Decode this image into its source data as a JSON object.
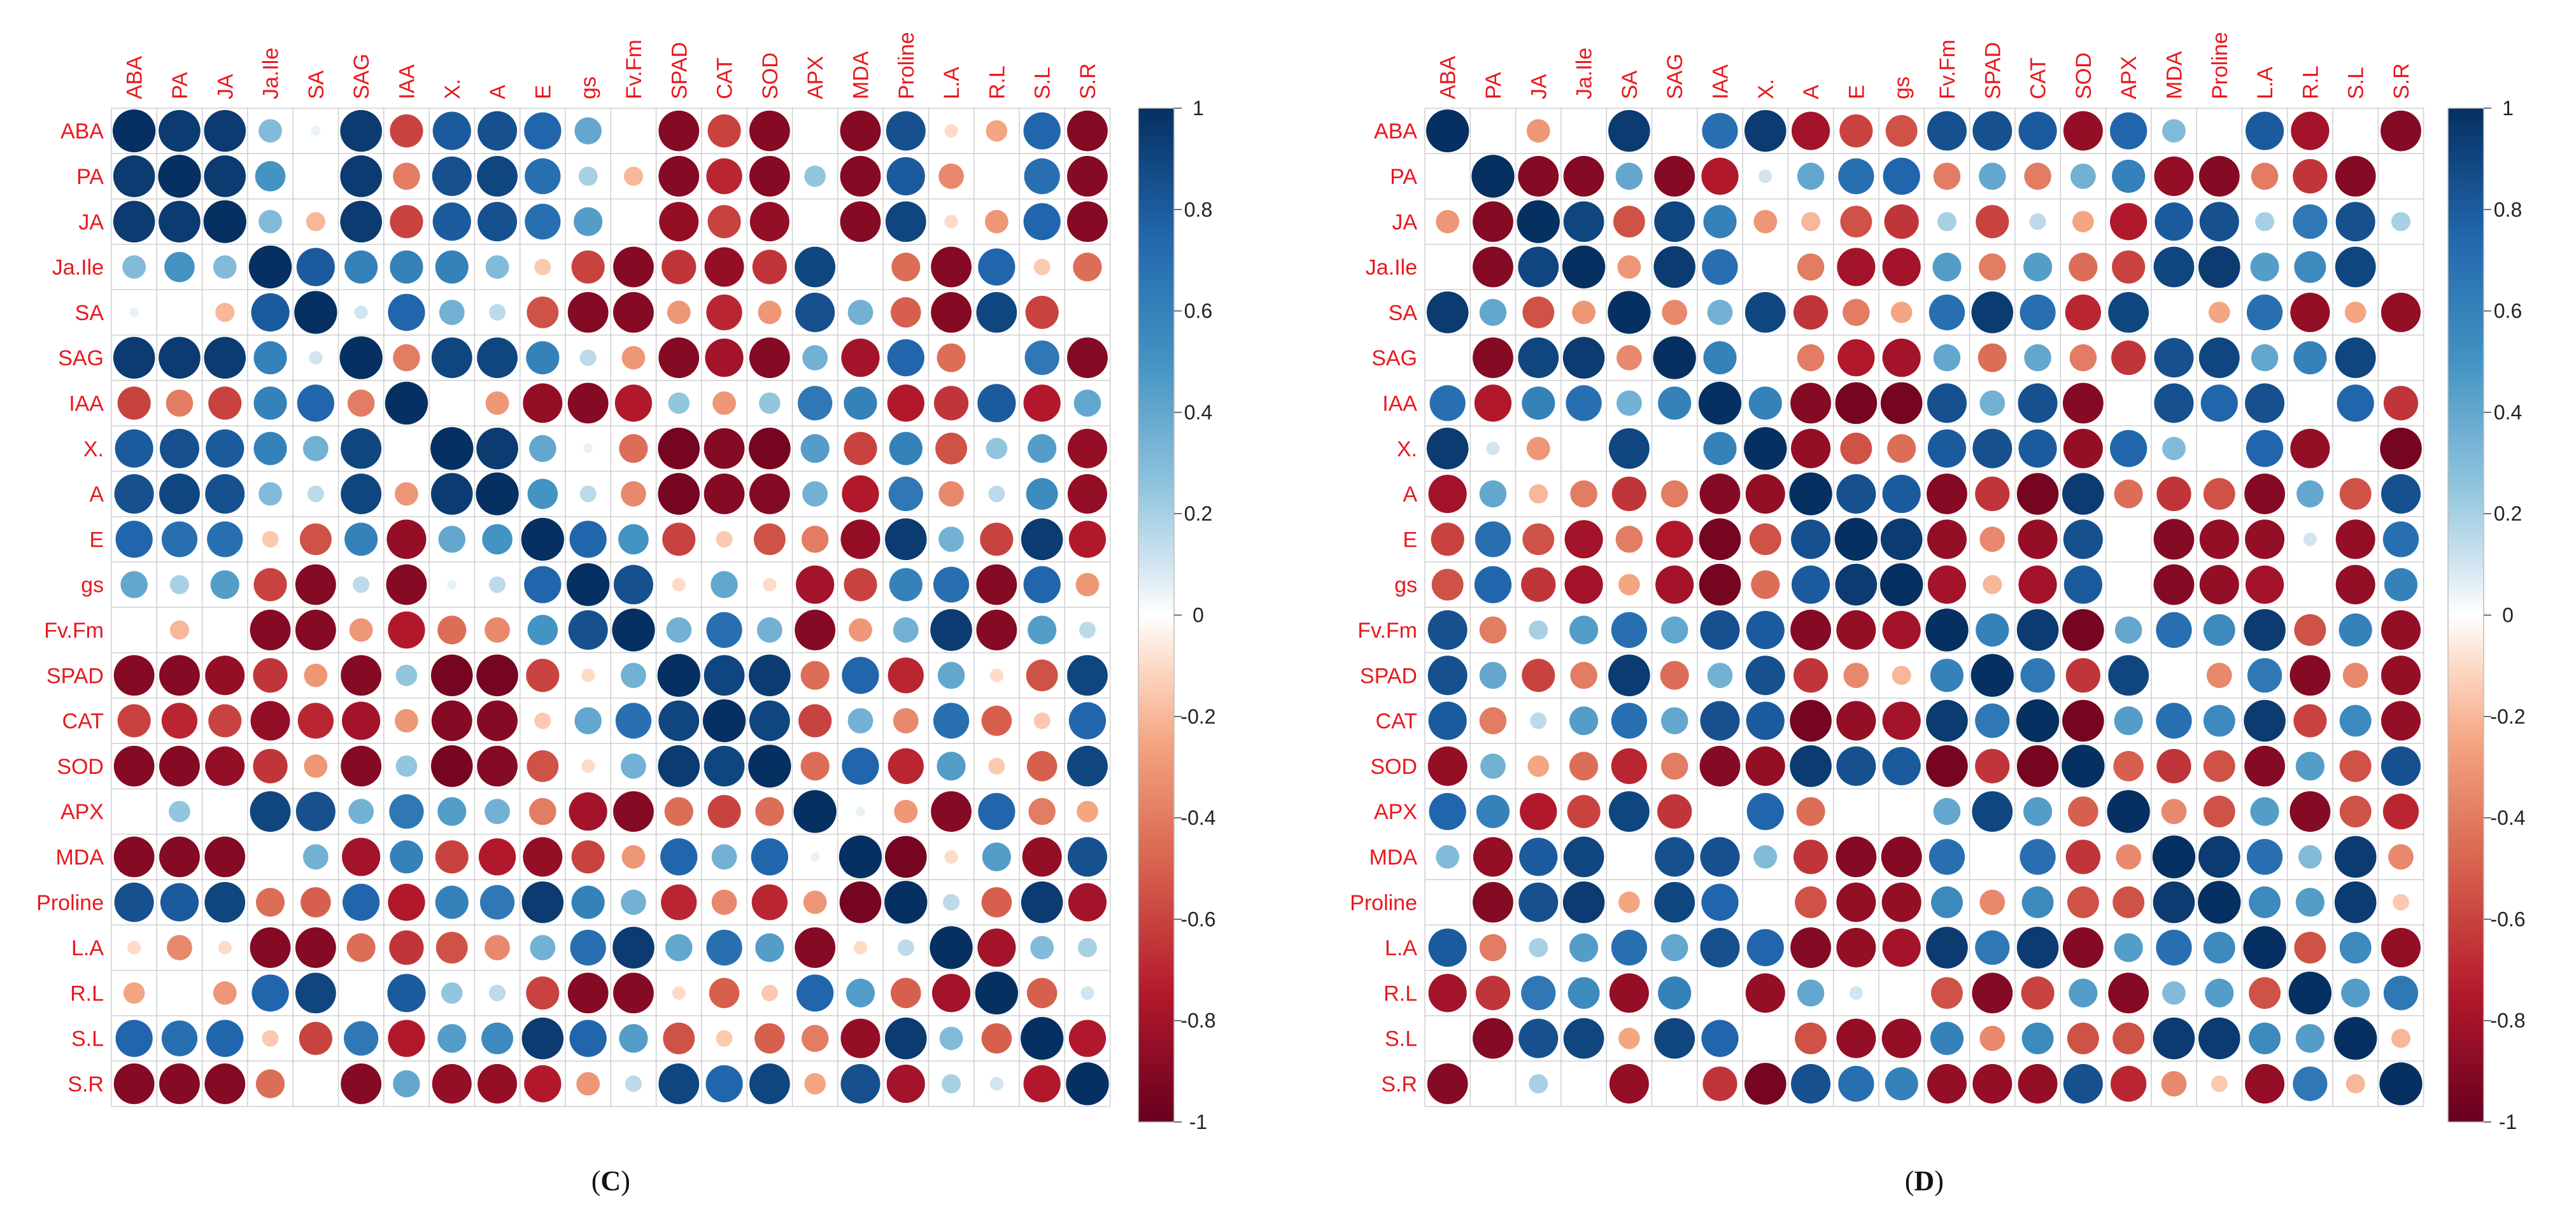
{
  "chart_data": [
    {
      "type": "heatmap",
      "panel_label": "C",
      "variables": [
        "ABA",
        "PA",
        "JA",
        "Ja.Ile",
        "SA",
        "SAG",
        "IAA",
        "X.",
        "A",
        "E",
        "gs",
        "Fv.Fm",
        "SPAD",
        "CAT",
        "SOD",
        "APX",
        "MDA",
        "Proline",
        "L.A",
        "R.L",
        "S.L",
        "S.R"
      ],
      "color_scale": {
        "range": [
          -1,
          1
        ],
        "ticks": [
          "1",
          "0.8",
          "0.6",
          "0.4",
          "0.2",
          "0",
          "-0.2",
          "-0.4",
          "-0.6",
          "-0.8",
          "-1"
        ],
        "colors": {
          "neg": "#67001F",
          "mid": "#FFFFFF",
          "pos": "#053061"
        }
      },
      "legend_position": "right",
      "grid": true,
      "matrix": [
        [
          1,
          0.95,
          0.95,
          0.3,
          0.05,
          0.95,
          -0.6,
          0.8,
          0.85,
          0.75,
          0.4,
          0,
          -0.9,
          -0.6,
          -0.9,
          0,
          -0.9,
          0.85,
          -0.1,
          -0.25,
          0.75,
          -0.9
        ],
        [
          0.95,
          1,
          0.95,
          0.5,
          0,
          0.95,
          -0.4,
          0.85,
          0.9,
          0.7,
          0.2,
          -0.2,
          -0.9,
          -0.7,
          -0.9,
          0.25,
          -0.9,
          0.8,
          -0.35,
          0,
          0.7,
          -0.9
        ],
        [
          0.95,
          0.95,
          1,
          0.3,
          -0.2,
          0.95,
          -0.6,
          0.8,
          0.85,
          0.7,
          0.45,
          0,
          -0.85,
          -0.6,
          -0.85,
          0,
          -0.9,
          0.9,
          -0.1,
          -0.3,
          0.75,
          -0.9
        ],
        [
          0.3,
          0.5,
          0.3,
          1,
          0.8,
          0.6,
          0.6,
          0.6,
          0.3,
          -0.15,
          -0.6,
          -0.9,
          -0.65,
          -0.85,
          -0.65,
          0.9,
          0,
          -0.45,
          -0.9,
          0.75,
          -0.15,
          -0.45
        ],
        [
          0.05,
          0,
          -0.2,
          0.8,
          1,
          0.1,
          0.75,
          0.35,
          0.15,
          -0.55,
          -0.9,
          -0.9,
          -0.3,
          -0.7,
          -0.3,
          0.85,
          0.35,
          -0.5,
          -0.9,
          0.9,
          -0.6,
          0
        ],
        [
          0.95,
          0.95,
          0.95,
          0.6,
          0.1,
          1,
          -0.4,
          0.9,
          0.9,
          0.6,
          0.15,
          -0.3,
          -0.9,
          -0.8,
          -0.9,
          0.35,
          -0.8,
          0.75,
          -0.45,
          0,
          0.65,
          -0.9
        ],
        [
          -0.6,
          -0.4,
          -0.6,
          0.6,
          0.75,
          -0.4,
          1,
          0,
          -0.3,
          -0.85,
          -0.9,
          -0.75,
          0.25,
          -0.3,
          0.25,
          0.65,
          0.6,
          -0.75,
          -0.65,
          0.8,
          -0.75,
          0.4
        ],
        [
          0.8,
          0.85,
          0.8,
          0.6,
          0.35,
          0.9,
          0,
          1,
          0.95,
          0.4,
          0.05,
          -0.45,
          -0.95,
          -0.9,
          -0.95,
          0.45,
          -0.6,
          0.6,
          -0.55,
          0.25,
          0.45,
          -0.85
        ],
        [
          0.85,
          0.9,
          0.85,
          0.3,
          0.15,
          0.9,
          -0.3,
          0.95,
          1,
          0.5,
          0.15,
          -0.35,
          -0.95,
          -0.9,
          -0.9,
          0.35,
          -0.75,
          0.65,
          -0.35,
          0.15,
          0.55,
          -0.85
        ],
        [
          0.75,
          0.7,
          0.7,
          -0.15,
          -0.55,
          0.6,
          -0.85,
          0.4,
          0.5,
          1,
          0.75,
          0.5,
          -0.6,
          -0.15,
          -0.55,
          -0.4,
          -0.85,
          0.95,
          0.35,
          -0.6,
          0.95,
          -0.75
        ],
        [
          0.4,
          0.2,
          0.45,
          -0.6,
          -0.9,
          0.15,
          -0.9,
          0.05,
          0.15,
          0.75,
          1,
          0.85,
          -0.1,
          0.4,
          -0.1,
          -0.8,
          -0.6,
          0.6,
          0.7,
          -0.9,
          0.75,
          -0.3
        ],
        [
          0,
          -0.2,
          0,
          -0.9,
          -0.9,
          -0.3,
          -0.75,
          -0.45,
          -0.35,
          0.5,
          0.85,
          1,
          0.35,
          0.7,
          0.35,
          -0.9,
          -0.3,
          0.35,
          0.95,
          -0.9,
          0.45,
          0.15
        ],
        [
          -0.9,
          -0.9,
          -0.85,
          -0.65,
          -0.3,
          -0.9,
          0.25,
          -0.95,
          -0.95,
          -0.6,
          -0.1,
          0.35,
          1,
          0.9,
          0.95,
          -0.45,
          0.75,
          -0.7,
          0.4,
          -0.1,
          -0.55,
          0.9
        ],
        [
          -0.6,
          -0.7,
          -0.6,
          -0.85,
          -0.7,
          -0.8,
          -0.3,
          -0.9,
          -0.9,
          -0.15,
          0.4,
          0.7,
          0.9,
          1,
          0.9,
          -0.6,
          0.35,
          -0.35,
          0.7,
          -0.5,
          -0.15,
          0.75
        ],
        [
          -0.9,
          -0.9,
          -0.85,
          -0.65,
          -0.3,
          -0.9,
          0.25,
          -0.95,
          -0.9,
          -0.55,
          -0.1,
          0.35,
          0.95,
          0.9,
          1,
          -0.45,
          0.75,
          -0.7,
          0.45,
          -0.15,
          -0.5,
          0.9
        ],
        [
          0,
          0.25,
          0,
          0.9,
          0.85,
          0.35,
          0.65,
          0.45,
          0.35,
          -0.4,
          -0.8,
          -0.9,
          -0.45,
          -0.6,
          -0.45,
          1,
          0.05,
          -0.3,
          -0.9,
          0.75,
          -0.4,
          -0.25
        ],
        [
          -0.9,
          -0.9,
          -0.9,
          0,
          0.35,
          -0.8,
          0.6,
          -0.6,
          -0.75,
          -0.85,
          -0.6,
          -0.3,
          0.75,
          0.35,
          0.75,
          0.05,
          1,
          -0.95,
          -0.1,
          0.45,
          -0.85,
          0.85
        ],
        [
          0.85,
          0.8,
          0.9,
          -0.45,
          -0.5,
          0.75,
          -0.75,
          0.6,
          0.65,
          0.95,
          0.6,
          0.35,
          -0.7,
          -0.35,
          -0.7,
          -0.3,
          -0.95,
          1,
          0.15,
          -0.5,
          0.95,
          -0.8
        ],
        [
          -0.1,
          -0.35,
          -0.1,
          -0.9,
          -0.9,
          -0.45,
          -0.65,
          -0.55,
          -0.35,
          0.35,
          0.7,
          0.95,
          0.4,
          0.7,
          0.45,
          -0.9,
          -0.1,
          0.15,
          1,
          -0.8,
          0.3,
          0.2
        ],
        [
          -0.25,
          0,
          -0.3,
          0.75,
          0.9,
          0,
          0.8,
          0.25,
          0.15,
          -0.6,
          -0.9,
          -0.9,
          -0.1,
          -0.5,
          -0.15,
          0.75,
          0.45,
          -0.5,
          -0.8,
          1,
          -0.5,
          0.1
        ],
        [
          0.75,
          0.7,
          0.75,
          -0.15,
          -0.6,
          0.65,
          -0.75,
          0.45,
          0.55,
          0.95,
          0.75,
          0.45,
          -0.55,
          -0.15,
          -0.5,
          -0.4,
          -0.85,
          0.95,
          0.3,
          -0.5,
          1,
          -0.75
        ],
        [
          -0.9,
          -0.9,
          -0.9,
          -0.45,
          0,
          -0.9,
          0.4,
          -0.85,
          -0.85,
          -0.75,
          -0.3,
          0.15,
          0.9,
          0.75,
          0.9,
          -0.25,
          0.85,
          -0.8,
          0.2,
          0.1,
          -0.75,
          1
        ]
      ]
    },
    {
      "type": "heatmap",
      "panel_label": "D",
      "variables": [
        "ABA",
        "PA",
        "JA",
        "Ja.Ile",
        "SA",
        "SAG",
        "IAA",
        "X.",
        "A",
        "E",
        "gs",
        "Fv.Fm",
        "SPAD",
        "CAT",
        "SOD",
        "APX",
        "MDA",
        "Proline",
        "L.A",
        "R.L",
        "S.L",
        "S.R"
      ],
      "color_scale": {
        "range": [
          -1,
          1
        ],
        "ticks": [
          "1",
          "0.8",
          "0.6",
          "0.4",
          "0.2",
          "0",
          "-0.2",
          "-0.4",
          "-0.6",
          "-0.8",
          "-1"
        ],
        "colors": {
          "neg": "#67001F",
          "mid": "#FFFFFF",
          "pos": "#053061"
        }
      },
      "legend_position": "right",
      "grid": true,
      "matrix": [
        [
          1,
          0,
          -0.3,
          0,
          0.95,
          0,
          0.7,
          0.95,
          -0.8,
          -0.6,
          -0.55,
          0.85,
          0.85,
          0.8,
          -0.85,
          0.75,
          0.3,
          0,
          0.8,
          -0.8,
          0,
          -0.9
        ],
        [
          0,
          1,
          -0.9,
          -0.9,
          0.4,
          -0.9,
          -0.75,
          0.1,
          0.4,
          0.7,
          0.75,
          -0.4,
          0.4,
          -0.4,
          0.35,
          0.6,
          -0.85,
          -0.9,
          -0.4,
          -0.65,
          -0.9,
          0
        ],
        [
          -0.3,
          -0.9,
          1,
          0.9,
          -0.55,
          0.9,
          0.6,
          -0.3,
          -0.2,
          -0.55,
          -0.65,
          0.2,
          -0.6,
          0.15,
          -0.25,
          -0.75,
          0.8,
          0.85,
          0.2,
          0.65,
          0.85,
          0.2
        ],
        [
          0,
          -0.9,
          0.9,
          1,
          -0.3,
          0.95,
          0.7,
          0,
          -0.4,
          -0.8,
          -0.8,
          0.45,
          -0.4,
          0.45,
          -0.45,
          -0.6,
          0.9,
          0.95,
          0.45,
          0.55,
          0.9,
          0
        ],
        [
          0.95,
          0.4,
          -0.55,
          -0.3,
          1,
          -0.35,
          0.35,
          0.9,
          -0.65,
          -0.4,
          -0.25,
          0.7,
          0.95,
          0.7,
          -0.7,
          0.9,
          0,
          -0.25,
          0.7,
          -0.85,
          -0.25,
          -0.85
        ],
        [
          0,
          -0.9,
          0.9,
          0.95,
          -0.35,
          1,
          0.6,
          0,
          -0.4,
          -0.75,
          -0.8,
          0.4,
          -0.45,
          0.4,
          -0.4,
          -0.65,
          0.85,
          0.9,
          0.4,
          0.6,
          0.9,
          0
        ],
        [
          0.7,
          -0.75,
          0.6,
          0.7,
          0.35,
          0.6,
          1,
          0.6,
          -0.9,
          -0.95,
          -0.95,
          0.85,
          0.35,
          0.85,
          -0.9,
          0,
          0.85,
          0.75,
          0.85,
          0,
          0.75,
          -0.65
        ],
        [
          0.95,
          0.1,
          -0.3,
          0,
          0.9,
          0,
          0.6,
          1,
          -0.85,
          -0.55,
          -0.45,
          0.8,
          0.85,
          0.8,
          -0.85,
          0.75,
          0.3,
          0,
          0.75,
          -0.85,
          0,
          -0.95
        ],
        [
          -0.8,
          0.4,
          -0.2,
          -0.4,
          -0.65,
          -0.4,
          -0.9,
          -0.85,
          1,
          0.85,
          0.8,
          -0.9,
          -0.65,
          -0.95,
          0.95,
          -0.45,
          -0.65,
          -0.55,
          -0.9,
          0.4,
          -0.55,
          0.85
        ],
        [
          -0.6,
          0.7,
          -0.55,
          -0.8,
          -0.4,
          -0.75,
          -0.95,
          -0.55,
          0.85,
          1,
          0.95,
          -0.85,
          -0.35,
          -0.85,
          0.85,
          0,
          -0.9,
          -0.85,
          -0.85,
          0.1,
          -0.85,
          0.7
        ],
        [
          -0.55,
          0.75,
          -0.65,
          -0.8,
          -0.25,
          -0.8,
          -0.95,
          -0.45,
          0.8,
          0.95,
          1,
          -0.8,
          -0.2,
          -0.8,
          0.8,
          0,
          -0.9,
          -0.85,
          -0.8,
          0,
          -0.85,
          0.6
        ],
        [
          0.85,
          -0.4,
          0.2,
          0.45,
          0.7,
          0.4,
          0.85,
          0.8,
          -0.9,
          -0.85,
          -0.8,
          1,
          0.6,
          0.95,
          -0.95,
          0.4,
          0.7,
          0.55,
          0.95,
          -0.55,
          0.6,
          -0.85
        ],
        [
          0.85,
          0.4,
          -0.6,
          -0.4,
          0.95,
          -0.45,
          0.35,
          0.85,
          -0.65,
          -0.35,
          -0.2,
          0.6,
          1,
          0.65,
          -0.65,
          0.9,
          0,
          -0.35,
          0.65,
          -0.9,
          -0.35,
          -0.85
        ],
        [
          0.8,
          -0.4,
          0.15,
          0.45,
          0.7,
          0.4,
          0.85,
          0.8,
          -0.95,
          -0.85,
          -0.8,
          0.95,
          0.65,
          1,
          -0.95,
          0.45,
          0.7,
          0.55,
          0.95,
          -0.6,
          0.55,
          -0.85
        ],
        [
          -0.85,
          0.35,
          -0.25,
          -0.45,
          -0.7,
          -0.4,
          -0.9,
          -0.85,
          0.95,
          0.85,
          0.8,
          -0.95,
          -0.65,
          -0.95,
          1,
          -0.5,
          -0.65,
          -0.55,
          -0.9,
          0.45,
          -0.55,
          0.85
        ],
        [
          0.75,
          0.6,
          -0.75,
          -0.6,
          0.9,
          -0.65,
          0,
          0.75,
          -0.45,
          0,
          0,
          0.4,
          0.9,
          0.45,
          -0.5,
          1,
          -0.35,
          -0.55,
          0.45,
          -0.9,
          -0.55,
          -0.7
        ],
        [
          0.3,
          -0.85,
          0.8,
          0.9,
          0,
          0.85,
          0.85,
          0.3,
          -0.65,
          -0.9,
          -0.9,
          0.7,
          0,
          0.7,
          -0.65,
          -0.35,
          1,
          0.95,
          0.7,
          0.3,
          0.95,
          -0.35
        ],
        [
          0,
          -0.9,
          0.85,
          0.95,
          -0.25,
          0.9,
          0.75,
          0,
          -0.55,
          -0.85,
          -0.85,
          0.55,
          -0.35,
          0.55,
          -0.55,
          -0.55,
          0.95,
          1,
          0.55,
          0.45,
          0.95,
          -0.15
        ],
        [
          0.8,
          -0.4,
          0.2,
          0.45,
          0.7,
          0.4,
          0.85,
          0.75,
          -0.9,
          -0.85,
          -0.8,
          0.95,
          0.65,
          0.95,
          -0.9,
          0.45,
          0.7,
          0.55,
          1,
          -0.55,
          0.55,
          -0.85
        ],
        [
          -0.8,
          -0.65,
          0.65,
          0.55,
          -0.85,
          0.6,
          0,
          -0.85,
          0.4,
          0.1,
          0,
          -0.55,
          -0.9,
          -0.6,
          0.45,
          -0.9,
          0.3,
          0.45,
          -0.55,
          1,
          0.45,
          0.65
        ],
        [
          0,
          -0.9,
          0.85,
          0.9,
          -0.25,
          0.9,
          0.75,
          0,
          -0.55,
          -0.85,
          -0.85,
          0.6,
          -0.35,
          0.55,
          -0.55,
          -0.55,
          0.95,
          0.95,
          0.55,
          0.45,
          1,
          -0.2
        ],
        [
          -0.9,
          0,
          0.2,
          0,
          -0.85,
          0,
          -0.65,
          -0.95,
          0.85,
          0.7,
          0.6,
          -0.85,
          -0.85,
          -0.85,
          0.85,
          -0.7,
          -0.35,
          -0.15,
          -0.85,
          0.65,
          -0.2,
          1
        ]
      ]
    }
  ]
}
